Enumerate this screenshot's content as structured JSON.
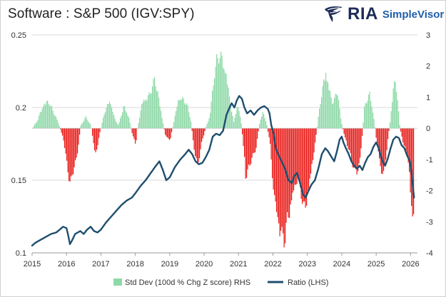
{
  "header": {
    "title": "Software : S&P 500 (IGV:SPY)",
    "brand_name": "RIA",
    "brand_product": "SimpleVisor"
  },
  "colors": {
    "ratio_line": "#1f4e6e",
    "std_dev_positive": "#8fd9a8",
    "std_dev_negative": "#e8201c",
    "gridline": "#d9d9d9",
    "zero_line": "#bfbfbf",
    "brand_dark": "#1d2b57",
    "brand_blue": "#1f5ea8"
  },
  "chart_data": {
    "type": "line",
    "title": "Software : S&P 500 (IGV:SPY)",
    "x_axis": {
      "ticks": [
        "2015",
        "2016",
        "2017",
        "2018",
        "2019",
        "2020",
        "2021",
        "2022",
        "2023",
        "2024",
        "2025",
        "2026"
      ],
      "range": [
        2015.0,
        2026.2
      ]
    },
    "y_left": {
      "ticks": [
        "0.1",
        "0.15",
        "0.2",
        "0.25"
      ],
      "range": [
        0.1,
        0.25
      ],
      "grid": true
    },
    "y_right": {
      "ticks": [
        "-4",
        "-3",
        "-2",
        "-1",
        "0",
        "1",
        "2",
        "3"
      ],
      "range": [
        -4,
        3
      ]
    },
    "legend": {
      "position": "bottom",
      "items": [
        "Std Dev (100d % Chg Z score) RHS",
        "Ratio (LHS)"
      ]
    },
    "series": [
      {
        "name": "Ratio (LHS)",
        "axis": "left",
        "style": "line",
        "points": [
          [
            2015.0,
            0.105
          ],
          [
            2015.1,
            0.107
          ],
          [
            2015.25,
            0.109
          ],
          [
            2015.4,
            0.111
          ],
          [
            2015.55,
            0.113
          ],
          [
            2015.7,
            0.114
          ],
          [
            2015.8,
            0.116
          ],
          [
            2015.9,
            0.118
          ],
          [
            2016.0,
            0.117
          ],
          [
            2016.05,
            0.112
          ],
          [
            2016.1,
            0.106
          ],
          [
            2016.15,
            0.108
          ],
          [
            2016.25,
            0.113
          ],
          [
            2016.4,
            0.115
          ],
          [
            2016.5,
            0.113
          ],
          [
            2016.6,
            0.116
          ],
          [
            2016.7,
            0.118
          ],
          [
            2016.8,
            0.115
          ],
          [
            2016.9,
            0.114
          ],
          [
            2017.0,
            0.116
          ],
          [
            2017.15,
            0.121
          ],
          [
            2017.3,
            0.125
          ],
          [
            2017.45,
            0.129
          ],
          [
            2017.6,
            0.133
          ],
          [
            2017.75,
            0.136
          ],
          [
            2017.9,
            0.138
          ],
          [
            2018.0,
            0.141
          ],
          [
            2018.15,
            0.146
          ],
          [
            2018.3,
            0.15
          ],
          [
            2018.45,
            0.155
          ],
          [
            2018.6,
            0.16
          ],
          [
            2018.7,
            0.163
          ],
          [
            2018.8,
            0.157
          ],
          [
            2018.9,
            0.15
          ],
          [
            2019.0,
            0.152
          ],
          [
            2019.15,
            0.159
          ],
          [
            2019.3,
            0.164
          ],
          [
            2019.45,
            0.168
          ],
          [
            2019.55,
            0.171
          ],
          [
            2019.65,
            0.168
          ],
          [
            2019.75,
            0.163
          ],
          [
            2019.85,
            0.161
          ],
          [
            2019.95,
            0.162
          ],
          [
            2020.05,
            0.166
          ],
          [
            2020.15,
            0.171
          ],
          [
            2020.25,
            0.18
          ],
          [
            2020.35,
            0.182
          ],
          [
            2020.45,
            0.181
          ],
          [
            2020.55,
            0.184
          ],
          [
            2020.65,
            0.195
          ],
          [
            2020.72,
            0.199
          ],
          [
            2020.8,
            0.203
          ],
          [
            2020.88,
            0.2
          ],
          [
            2020.95,
            0.205
          ],
          [
            2021.02,
            0.208
          ],
          [
            2021.1,
            0.206
          ],
          [
            2021.17,
            0.2
          ],
          [
            2021.25,
            0.196
          ],
          [
            2021.35,
            0.198
          ],
          [
            2021.45,
            0.195
          ],
          [
            2021.55,
            0.198
          ],
          [
            2021.65,
            0.2
          ],
          [
            2021.75,
            0.201
          ],
          [
            2021.85,
            0.199
          ],
          [
            2021.9,
            0.196
          ],
          [
            2021.95,
            0.188
          ],
          [
            2022.02,
            0.182
          ],
          [
            2022.08,
            0.172
          ],
          [
            2022.15,
            0.168
          ],
          [
            2022.25,
            0.163
          ],
          [
            2022.35,
            0.158
          ],
          [
            2022.45,
            0.15
          ],
          [
            2022.55,
            0.148
          ],
          [
            2022.62,
            0.153
          ],
          [
            2022.7,
            0.155
          ],
          [
            2022.8,
            0.147
          ],
          [
            2022.88,
            0.14
          ],
          [
            2022.95,
            0.138
          ],
          [
            2023.02,
            0.142
          ],
          [
            2023.12,
            0.147
          ],
          [
            2023.22,
            0.15
          ],
          [
            2023.32,
            0.158
          ],
          [
            2023.42,
            0.168
          ],
          [
            2023.52,
            0.172
          ],
          [
            2023.6,
            0.17
          ],
          [
            2023.7,
            0.166
          ],
          [
            2023.78,
            0.163
          ],
          [
            2023.86,
            0.17
          ],
          [
            2023.94,
            0.178
          ],
          [
            2024.0,
            0.18
          ],
          [
            2024.05,
            0.176
          ],
          [
            2024.12,
            0.172
          ],
          [
            2024.2,
            0.168
          ],
          [
            2024.28,
            0.163
          ],
          [
            2024.36,
            0.16
          ],
          [
            2024.45,
            0.158
          ],
          [
            2024.52,
            0.16
          ],
          [
            2024.6,
            0.157
          ],
          [
            2024.68,
            0.162
          ],
          [
            2024.76,
            0.166
          ],
          [
            2024.84,
            0.168
          ],
          [
            2024.92,
            0.173
          ],
          [
            2025.0,
            0.176
          ],
          [
            2025.06,
            0.173
          ],
          [
            2025.12,
            0.168
          ],
          [
            2025.2,
            0.162
          ],
          [
            2025.26,
            0.16
          ],
          [
            2025.34,
            0.165
          ],
          [
            2025.42,
            0.172
          ],
          [
            2025.5,
            0.178
          ],
          [
            2025.58,
            0.18
          ],
          [
            2025.66,
            0.179
          ],
          [
            2025.74,
            0.174
          ],
          [
            2025.82,
            0.172
          ],
          [
            2025.9,
            0.167
          ],
          [
            2025.98,
            0.163
          ],
          [
            2026.03,
            0.155
          ],
          [
            2026.07,
            0.145
          ],
          [
            2026.1,
            0.138
          ]
        ]
      },
      {
        "name": "Std Dev (100d % Chg Z score) RHS",
        "axis": "right",
        "style": "bar",
        "points": [
          [
            2015.0,
            0.0
          ],
          [
            2015.15,
            0.3
          ],
          [
            2015.3,
            0.8
          ],
          [
            2015.45,
            1.0
          ],
          [
            2015.6,
            0.6
          ],
          [
            2015.75,
            0.2
          ],
          [
            2015.9,
            -0.4
          ],
          [
            2016.0,
            -1.3
          ],
          [
            2016.1,
            -2.0
          ],
          [
            2016.2,
            -1.4
          ],
          [
            2016.3,
            -1.0
          ],
          [
            2016.4,
            0.1
          ],
          [
            2016.55,
            0.4
          ],
          [
            2016.7,
            0.1
          ],
          [
            2016.8,
            -0.8
          ],
          [
            2016.85,
            -0.9
          ],
          [
            2016.95,
            -0.2
          ],
          [
            2017.1,
            0.6
          ],
          [
            2017.25,
            1.0
          ],
          [
            2017.4,
            0.3
          ],
          [
            2017.5,
            0.1
          ],
          [
            2017.65,
            0.8
          ],
          [
            2017.8,
            0.4
          ],
          [
            2017.9,
            -0.2
          ],
          [
            2018.0,
            -0.6
          ],
          [
            2018.05,
            0.0
          ],
          [
            2018.2,
            1.0
          ],
          [
            2018.35,
            1.1
          ],
          [
            2018.5,
            1.5
          ],
          [
            2018.55,
            1.8
          ],
          [
            2018.65,
            1.2
          ],
          [
            2018.75,
            0.5
          ],
          [
            2018.85,
            -0.2
          ],
          [
            2018.95,
            -0.4
          ],
          [
            2019.0,
            -0.4
          ],
          [
            2019.1,
            0.2
          ],
          [
            2019.25,
            1.1
          ],
          [
            2019.4,
            1.0
          ],
          [
            2019.5,
            0.8
          ],
          [
            2019.6,
            0.3
          ],
          [
            2019.7,
            -0.8
          ],
          [
            2019.8,
            -1.4
          ],
          [
            2019.9,
            -0.6
          ],
          [
            2020.05,
            0.1
          ],
          [
            2020.15,
            0.4
          ],
          [
            2020.25,
            1.6
          ],
          [
            2020.35,
            2.4
          ],
          [
            2020.45,
            2.6
          ],
          [
            2020.55,
            2.3
          ],
          [
            2020.65,
            1.8
          ],
          [
            2020.75,
            0.9
          ],
          [
            2020.85,
            0.2
          ],
          [
            2020.95,
            0.8
          ],
          [
            2021.05,
            0.4
          ],
          [
            2021.15,
            -0.9
          ],
          [
            2021.2,
            -1.9
          ],
          [
            2021.3,
            -1.3
          ],
          [
            2021.4,
            -1.0
          ],
          [
            2021.5,
            -0.7
          ],
          [
            2021.6,
            0.2
          ],
          [
            2021.7,
            0.6
          ],
          [
            2021.8,
            0.2
          ],
          [
            2021.9,
            -0.5
          ],
          [
            2021.95,
            -1.3
          ],
          [
            2022.0,
            -2.2
          ],
          [
            2022.1,
            -3.1
          ],
          [
            2022.2,
            -3.7
          ],
          [
            2022.3,
            -3.9
          ],
          [
            2022.35,
            -3.8
          ],
          [
            2022.4,
            -3.3
          ],
          [
            2022.5,
            -2.8
          ],
          [
            2022.6,
            -2.2
          ],
          [
            2022.7,
            -1.8
          ],
          [
            2022.8,
            -2.2
          ],
          [
            2022.88,
            -2.9
          ],
          [
            2022.95,
            -2.7
          ],
          [
            2023.05,
            -2.0
          ],
          [
            2023.15,
            -1.1
          ],
          [
            2023.25,
            -0.2
          ],
          [
            2023.35,
            0.8
          ],
          [
            2023.45,
            1.6
          ],
          [
            2023.52,
            2.0
          ],
          [
            2023.6,
            1.6
          ],
          [
            2023.7,
            0.9
          ],
          [
            2023.8,
            1.1
          ],
          [
            2023.88,
            1.3
          ],
          [
            2023.95,
            0.4
          ],
          [
            2024.05,
            -0.2
          ],
          [
            2024.15,
            -0.6
          ],
          [
            2024.25,
            -1.0
          ],
          [
            2024.35,
            -1.5
          ],
          [
            2024.45,
            -1.6
          ],
          [
            2024.55,
            -0.8
          ],
          [
            2024.65,
            0.8
          ],
          [
            2024.72,
            1.0
          ],
          [
            2024.8,
            1.2
          ],
          [
            2024.88,
            0.7
          ],
          [
            2024.95,
            0.1
          ],
          [
            2025.0,
            -0.5
          ],
          [
            2025.1,
            -1.3
          ],
          [
            2025.2,
            -1.7
          ],
          [
            2025.3,
            -0.7
          ],
          [
            2025.4,
            0.3
          ],
          [
            2025.5,
            1.6
          ],
          [
            2025.55,
            1.8
          ],
          [
            2025.6,
            1.1
          ],
          [
            2025.68,
            0.0
          ],
          [
            2025.75,
            -0.4
          ],
          [
            2025.85,
            -0.8
          ],
          [
            2025.92,
            -1.2
          ],
          [
            2026.0,
            -2.5
          ],
          [
            2026.05,
            -3.5
          ],
          [
            2026.1,
            -3.2
          ]
        ]
      }
    ]
  }
}
